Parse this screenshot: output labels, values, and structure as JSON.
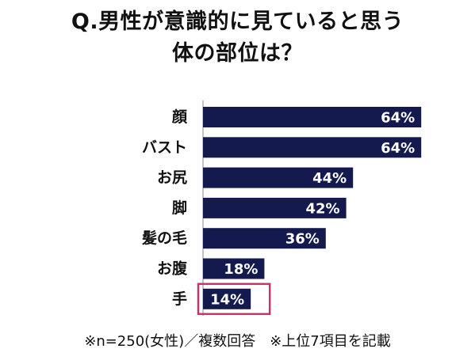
{
  "title": {
    "line1": "Q.男性が意識的に見ていると思う",
    "line2": "体の部位は？"
  },
  "footnote": "※n=250(女性)／複数回答　※上位7項目を記載",
  "colors": {
    "bar": "#141a4e",
    "bar_label": "#ffffff",
    "axis": "#888888",
    "highlight": "#c8336e",
    "category_text": "#111111"
  },
  "chart_data": {
    "type": "bar",
    "orientation": "horizontal",
    "title": "Q.男性が意識的に見ていると思う体の部位は？",
    "xlabel": "",
    "ylabel": "",
    "categories": [
      "顔",
      "バスト",
      "お尻",
      "脚",
      "髪の毛",
      "お腹",
      "手"
    ],
    "values": [
      64,
      64,
      44,
      42,
      36,
      18,
      14
    ],
    "value_labels": [
      "64%",
      "64%",
      "44%",
      "42%",
      "36%",
      "18%",
      "14%"
    ],
    "xlim": [
      0,
      70
    ],
    "grid": false,
    "highlighted_category": "手"
  }
}
